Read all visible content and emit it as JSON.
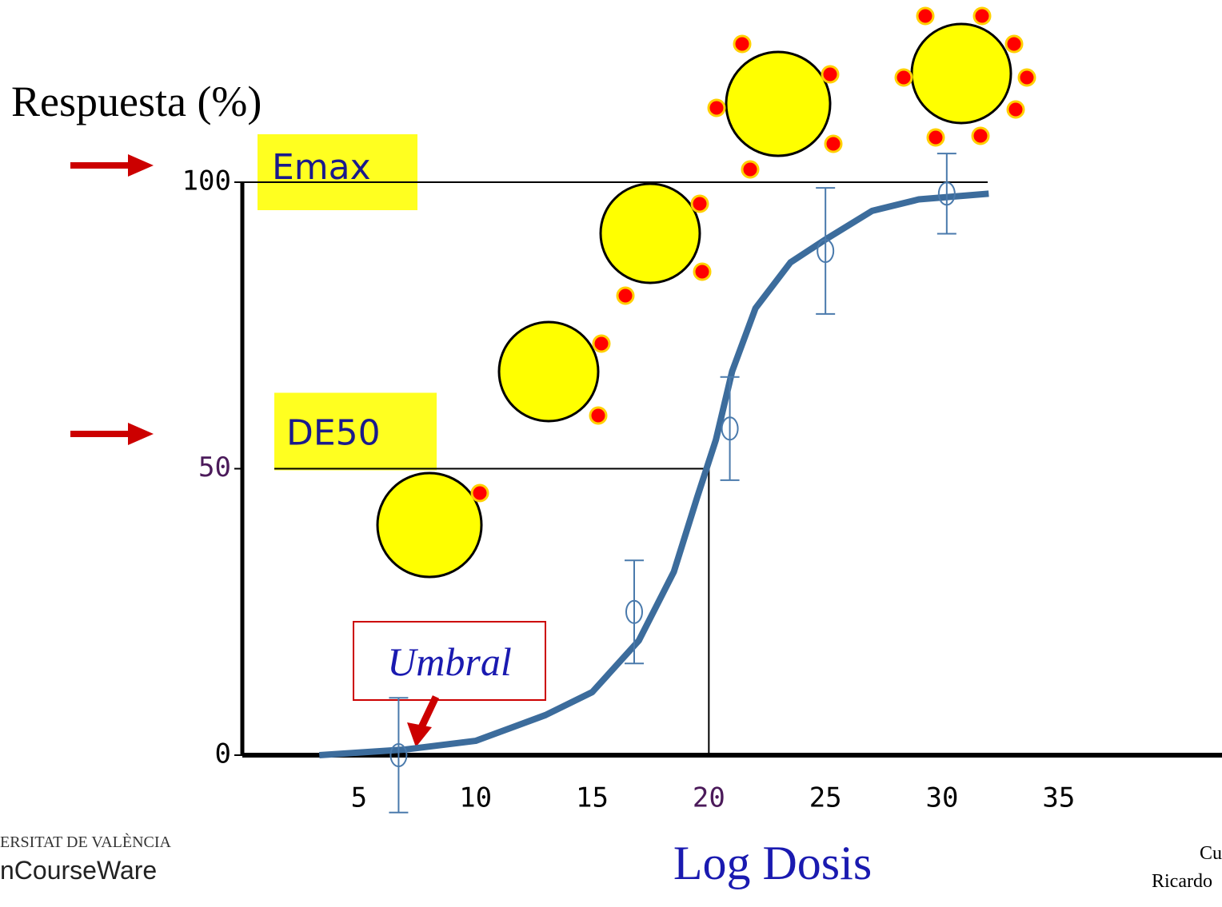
{
  "chart_data": {
    "type": "line",
    "y_label": "Respuesta (%)",
    "x_label": "Log Dosis",
    "xlim": [
      0,
      42
    ],
    "ylim": [
      0,
      100
    ],
    "xticks": [
      5,
      10,
      15,
      20,
      25,
      30,
      35
    ],
    "yticks": [
      0,
      50,
      100
    ],
    "series": [
      {
        "color": "#3c6c9c",
        "x": [
          3.3,
          7,
          10,
          13,
          15,
          17,
          18.5,
          19.5,
          20.3,
          21,
          22,
          23.5,
          25,
          27,
          29,
          32
        ],
        "values": [
          0,
          1,
          2.5,
          7,
          11,
          20,
          32,
          45,
          55,
          67,
          78,
          86,
          90,
          95,
          97,
          98
        ]
      },
      {
        "color": "#4a7aac",
        "x": [
          6.7,
          16.8,
          20.9,
          25,
          30.2
        ],
        "values": [
          0,
          25,
          57,
          88,
          98
        ],
        "errors": [
          10,
          9,
          9,
          11,
          7
        ]
      }
    ],
    "annotations": [
      {
        "text": "Emax",
        "y": 100
      },
      {
        "text": "DE50",
        "y": 50,
        "x": 20
      },
      {
        "text": "Umbral"
      }
    ],
    "footer": {
      "logo_top": "ERSITAT DE VALÈNCIA",
      "logo_bottom": "nCourseWare",
      "credit_1": "Cu",
      "credit_2": "Ricardo"
    }
  }
}
